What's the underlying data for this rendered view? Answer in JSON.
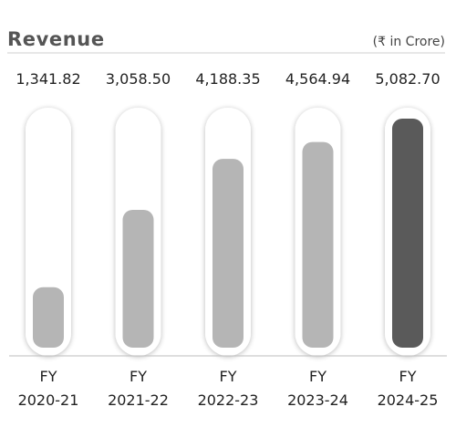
{
  "chart_data": {
    "type": "bar",
    "title": "Revenue",
    "unit_note": "(₹ in Crore)",
    "categories": [
      "FY 2020-21",
      "FY 2021-22",
      "FY 2022-23",
      "FY 2023-24",
      "FY 2024-25"
    ],
    "category_lines": [
      [
        "FY",
        "2020-21"
      ],
      [
        "FY",
        "2021-22"
      ],
      [
        "FY",
        "2022-23"
      ],
      [
        "FY",
        "2023-24"
      ],
      [
        "FY",
        "2024-25"
      ]
    ],
    "values": [
      1341.82,
      3058.5,
      4188.35,
      4564.94,
      5082.7
    ],
    "value_labels": [
      "1,341.82",
      "3,058.50",
      "4,188.35",
      "4,564.94",
      "5,082.70"
    ],
    "ylim": [
      0,
      5082.7
    ],
    "bar_colors": [
      "#b5b5b5",
      "#b5b5b5",
      "#b5b5b5",
      "#b5b5b5",
      "#5a5a5a"
    ],
    "grid": false,
    "legend": "none"
  }
}
